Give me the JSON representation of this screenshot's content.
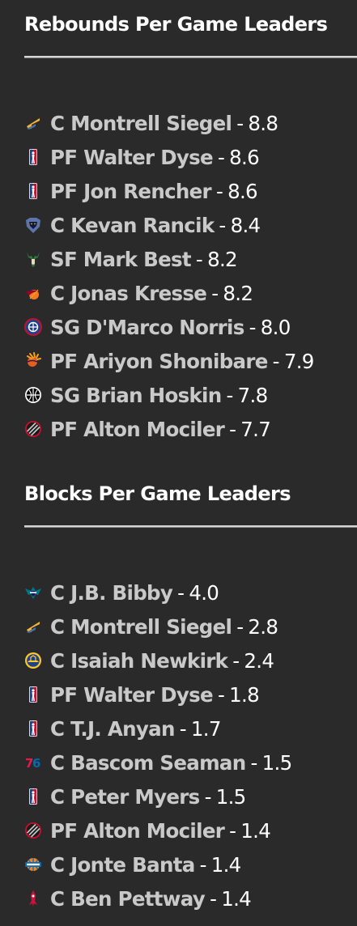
{
  "rebounds": {
    "title": "Rebounds Per Game Leaders",
    "entries": [
      {
        "team_icon": "utah-jazz-logo",
        "player": "C Montrell Siegel",
        "separator": "-",
        "value": "8.8"
      },
      {
        "team_icon": "nba-logo",
        "player": "PF Walter Dyse",
        "separator": "-",
        "value": "8.6"
      },
      {
        "team_icon": "nba-logo",
        "player": "PF Jon Rencher",
        "separator": "-",
        "value": "8.6"
      },
      {
        "team_icon": "memphis-grizzlies-logo",
        "player": "C Kevan Rancik",
        "separator": "-",
        "value": "8.4"
      },
      {
        "team_icon": "milwaukee-bucks-logo",
        "player": "SF Mark Best",
        "separator": "-",
        "value": "8.2"
      },
      {
        "team_icon": "miami-heat-logo",
        "player": "C Jonas Kresse",
        "separator": "-",
        "value": "8.2"
      },
      {
        "team_icon": "la-clippers-logo",
        "player": "SG D'Marco Norris",
        "separator": "-",
        "value": "8.0"
      },
      {
        "team_icon": "phoenix-suns-logo",
        "player": "PF Ariyon Shonibare",
        "separator": "-",
        "value": "7.9"
      },
      {
        "team_icon": "brooklyn-nets-logo",
        "player": "SG Brian Hoskin",
        "separator": "-",
        "value": "7.8"
      },
      {
        "team_icon": "portland-trail-blazers-logo",
        "player": "PF Alton Mociler",
        "separator": "-",
        "value": "7.7"
      }
    ]
  },
  "blocks": {
    "title": "Blocks Per Game Leaders",
    "entries": [
      {
        "team_icon": "charlotte-hornets-logo",
        "player": "C J.B. Bibby",
        "separator": "-",
        "value": "4.0"
      },
      {
        "team_icon": "utah-jazz-logo",
        "player": "C Montrell Siegel",
        "separator": "-",
        "value": "2.8"
      },
      {
        "team_icon": "golden-state-warriors-logo",
        "player": "C Isaiah Newkirk",
        "separator": "-",
        "value": "2.4"
      },
      {
        "team_icon": "nba-logo",
        "player": "PF Walter Dyse",
        "separator": "-",
        "value": "1.8"
      },
      {
        "team_icon": "nba-logo",
        "player": "C T.J. Anyan",
        "separator": "-",
        "value": "1.7"
      },
      {
        "team_icon": "philadelphia-76ers-logo",
        "player": "C Bascom Seaman",
        "separator": "-",
        "value": "1.5"
      },
      {
        "team_icon": "nba-logo",
        "player": "C Peter Myers",
        "separator": "-",
        "value": "1.5"
      },
      {
        "team_icon": "portland-trail-blazers-logo",
        "player": "PF Alton Mociler",
        "separator": "-",
        "value": "1.4"
      },
      {
        "team_icon": "new-york-knicks-logo",
        "player": "C Jonte Banta",
        "separator": "-",
        "value": "1.4"
      },
      {
        "team_icon": "houston-rockets-logo",
        "player": "C Ben Pettway",
        "separator": "-",
        "value": "1.4"
      }
    ]
  },
  "colors": {
    "background": "#2a2a2a",
    "title": "#ffffff",
    "player_link": "#c9c9c9",
    "value": "#ffffff",
    "rule": "#d6d6d6"
  }
}
